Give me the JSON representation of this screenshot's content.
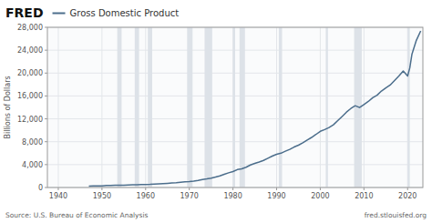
{
  "chart_data": {
    "type": "line",
    "title": "Gross Domestic Product",
    "ylabel": "Billions of Dollars",
    "annotations": [
      "FRED",
      "Source: U.S. Bureau of Economic Analysis",
      "fred.stlouisfed.org"
    ],
    "color": "#4c6e8c",
    "grid": true,
    "xlim": [
      1937.5,
      2023.5
    ],
    "xticks": [
      1940,
      1950,
      1960,
      1970,
      1980,
      1990,
      2000,
      2010,
      2020
    ],
    "ylim": [
      0,
      28000
    ],
    "yticks": [
      0,
      {
        "value": 4000,
        "label": "4,000"
      },
      {
        "value": 8000,
        "label": "8,000"
      },
      {
        "value": 12000,
        "label": "12,000"
      },
      {
        "value": 16000,
        "label": "16,000"
      },
      {
        "value": 20000,
        "label": "20,000"
      },
      {
        "value": 24000,
        "label": "24,000"
      },
      {
        "value": 28000,
        "label": "28,000"
      }
    ],
    "shaded_regions": [
      [
        1953.5,
        1954.5
      ],
      [
        1957.5,
        1958.5
      ],
      [
        1960.5,
        1961.5
      ],
      [
        1969.5,
        1970.75
      ],
      [
        1973.5,
        1975.25
      ],
      [
        1980.0,
        1980.5
      ],
      [
        1981.5,
        1982.75
      ],
      [
        1990.5,
        1991.25
      ],
      [
        2001.25,
        2001.75
      ],
      [
        2007.75,
        2009.5
      ],
      [
        2020.0,
        2020.5
      ]
    ],
    "x": [
      1947,
      1948,
      1949,
      1950,
      1951,
      1952,
      1953,
      1954,
      1955,
      1956,
      1957,
      1958,
      1959,
      1960,
      1961,
      1962,
      1963,
      1964,
      1965,
      1966,
      1967,
      1968,
      1969,
      1970,
      1971,
      1972,
      1973,
      1974,
      1975,
      1976,
      1977,
      1978,
      1979,
      1980,
      1981,
      1982,
      1983,
      1984,
      1985,
      1986,
      1987,
      1988,
      1989,
      1990,
      1991,
      1992,
      1993,
      1994,
      1995,
      1996,
      1997,
      1998,
      1999,
      2000,
      2001,
      2002,
      2003,
      2004,
      2005,
      2006,
      2007,
      2008,
      2009,
      2010,
      2011,
      2012,
      2013,
      2014,
      2015,
      2016,
      2017,
      2018,
      2019,
      2020,
      2020.5,
      2021,
      2022,
      2023
    ],
    "values": [
      244.2,
      269.2,
      267.3,
      293.7,
      339.3,
      358.3,
      379.3,
      380.4,
      414.8,
      437.5,
      461.1,
      467.2,
      506.6,
      526.4,
      544.7,
      585.6,
      617.7,
      663.6,
      719.1,
      787.8,
      832.6,
      909.8,
      984.6,
      1038.5,
      1127.1,
      1238.3,
      1382.7,
      1500.0,
      1638.3,
      1825.3,
      2030.9,
      2294.7,
      2563.3,
      2789.5,
      3128.4,
      3255.0,
      3536.7,
      3933.2,
      4220.3,
      4462.8,
      4739.5,
      5103.8,
      5484.4,
      5803.1,
      5995.9,
      6337.7,
      6657.4,
      7072.2,
      7397.7,
      7816.9,
      8304.3,
      8747.0,
      9268.4,
      9817.0,
      10128.0,
      10469.6,
      10960.8,
      11685.9,
      12421.9,
      13178.4,
      13807.5,
      14291.5,
      13973.7,
      14498.9,
      15041.4,
      15684.8,
      16129.4,
      16858.6,
      17413.3,
      17913.2,
      18701.8,
      19481.2,
      20364.6,
      19477.4,
      20893.7,
      23315.1,
      25723.0,
      27357.8
    ]
  }
}
